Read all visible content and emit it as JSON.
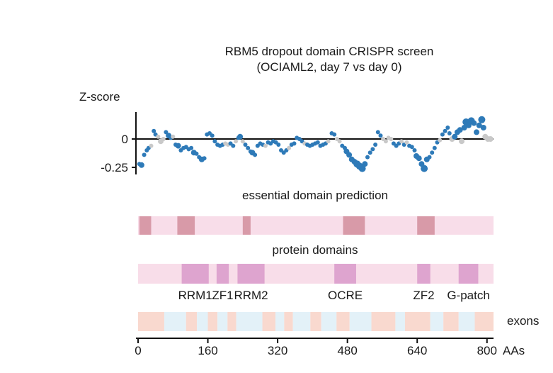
{
  "title_line1": "RBM5 dropout domain CRISPR screen",
  "title_line2": "(OCIAML2, day 7 vs day 0)",
  "colors": {
    "dot_active": "#2e7ab8",
    "dot_neutral": "#c9c9c9",
    "essential_bg": "#f8dde9",
    "essential_region": "#d89aa8",
    "domain_bg": "#f8dde9",
    "domain_region": "#dea4cf",
    "exon_a": "#f9d9cf",
    "exon_b": "#e3f1f8"
  },
  "chart_data": [
    {
      "type": "scatter",
      "title": "RBM5 dropout domain CRISPR screen (OCIAML2, day 7 vs day 0)",
      "ylabel": "Z-score",
      "xlabel": "AAs",
      "xlim": [
        0,
        815
      ],
      "ylim": [
        -0.28,
        0.2
      ],
      "yticks": [
        {
          "value": 0,
          "label": "0"
        },
        {
          "value": -0.25,
          "label": "-0.25"
        }
      ],
      "points": [
        {
          "x": 3,
          "y": -0.22,
          "s": 3,
          "c": "a"
        },
        {
          "x": 8,
          "y": -0.23,
          "s": 4,
          "c": "a"
        },
        {
          "x": 14,
          "y": -0.14,
          "s": 3,
          "c": "a"
        },
        {
          "x": 20,
          "y": -0.1,
          "s": 3,
          "c": "a"
        },
        {
          "x": 24,
          "y": -0.08,
          "s": 3,
          "c": "a"
        },
        {
          "x": 30,
          "y": -0.06,
          "s": 3,
          "c": "n"
        },
        {
          "x": 36,
          "y": 0.07,
          "s": 3,
          "c": "a"
        },
        {
          "x": 40,
          "y": 0.04,
          "s": 3,
          "c": "a"
        },
        {
          "x": 46,
          "y": 0.02,
          "s": 3,
          "c": "n"
        },
        {
          "x": 52,
          "y": -0.02,
          "s": 4,
          "c": "n"
        },
        {
          "x": 58,
          "y": 0.0,
          "s": 3,
          "c": "n"
        },
        {
          "x": 64,
          "y": 0.06,
          "s": 3,
          "c": "a"
        },
        {
          "x": 70,
          "y": 0.03,
          "s": 4,
          "c": "a"
        },
        {
          "x": 75,
          "y": 0.01,
          "s": 3,
          "c": "a"
        },
        {
          "x": 80,
          "y": 0.02,
          "s": 3,
          "c": "n"
        },
        {
          "x": 86,
          "y": -0.05,
          "s": 3,
          "c": "a"
        },
        {
          "x": 92,
          "y": -0.06,
          "s": 4,
          "c": "a"
        },
        {
          "x": 98,
          "y": -0.1,
          "s": 3,
          "c": "a"
        },
        {
          "x": 104,
          "y": -0.08,
          "s": 3,
          "c": "a"
        },
        {
          "x": 110,
          "y": -0.07,
          "s": 3,
          "c": "a"
        },
        {
          "x": 116,
          "y": -0.09,
          "s": 3,
          "c": "a"
        },
        {
          "x": 122,
          "y": -0.08,
          "s": 3,
          "c": "a"
        },
        {
          "x": 128,
          "y": -0.12,
          "s": 4,
          "c": "a"
        },
        {
          "x": 134,
          "y": -0.13,
          "s": 3,
          "c": "a"
        },
        {
          "x": 140,
          "y": -0.16,
          "s": 3,
          "c": "a"
        },
        {
          "x": 146,
          "y": -0.18,
          "s": 4,
          "c": "a"
        },
        {
          "x": 152,
          "y": -0.17,
          "s": 3,
          "c": "a"
        },
        {
          "x": 158,
          "y": 0.04,
          "s": 3,
          "c": "a"
        },
        {
          "x": 164,
          "y": 0.05,
          "s": 3,
          "c": "a"
        },
        {
          "x": 170,
          "y": 0.03,
          "s": 3,
          "c": "a"
        },
        {
          "x": 176,
          "y": -0.02,
          "s": 3,
          "c": "a"
        },
        {
          "x": 182,
          "y": -0.05,
          "s": 3,
          "c": "a"
        },
        {
          "x": 188,
          "y": -0.06,
          "s": 3,
          "c": "a"
        },
        {
          "x": 194,
          "y": -0.05,
          "s": 3,
          "c": "a"
        },
        {
          "x": 200,
          "y": -0.04,
          "s": 3,
          "c": "n"
        },
        {
          "x": 206,
          "y": -0.05,
          "s": 3,
          "c": "n"
        },
        {
          "x": 212,
          "y": -0.04,
          "s": 3,
          "c": "a"
        },
        {
          "x": 218,
          "y": -0.06,
          "s": 3,
          "c": "a"
        },
        {
          "x": 224,
          "y": -0.02,
          "s": 3,
          "c": "n"
        },
        {
          "x": 230,
          "y": 0.01,
          "s": 3,
          "c": "a"
        },
        {
          "x": 234,
          "y": 0.02,
          "s": 4,
          "c": "a"
        },
        {
          "x": 240,
          "y": -0.02,
          "s": 3,
          "c": "n"
        },
        {
          "x": 246,
          "y": -0.05,
          "s": 3,
          "c": "a"
        },
        {
          "x": 252,
          "y": -0.08,
          "s": 3,
          "c": "a"
        },
        {
          "x": 258,
          "y": -0.11,
          "s": 3,
          "c": "a"
        },
        {
          "x": 262,
          "y": -0.12,
          "s": 4,
          "c": "a"
        },
        {
          "x": 268,
          "y": -0.14,
          "s": 3,
          "c": "a"
        },
        {
          "x": 274,
          "y": -0.06,
          "s": 3,
          "c": "a"
        },
        {
          "x": 280,
          "y": -0.04,
          "s": 3,
          "c": "a"
        },
        {
          "x": 286,
          "y": -0.05,
          "s": 3,
          "c": "a"
        },
        {
          "x": 292,
          "y": -0.06,
          "s": 3,
          "c": "n"
        },
        {
          "x": 298,
          "y": -0.03,
          "s": 3,
          "c": "a"
        },
        {
          "x": 304,
          "y": -0.04,
          "s": 3,
          "c": "a"
        },
        {
          "x": 310,
          "y": -0.02,
          "s": 3,
          "c": "a"
        },
        {
          "x": 316,
          "y": -0.03,
          "s": 3,
          "c": "a"
        },
        {
          "x": 322,
          "y": -0.05,
          "s": 3,
          "c": "a"
        },
        {
          "x": 328,
          "y": -0.1,
          "s": 3,
          "c": "a"
        },
        {
          "x": 334,
          "y": -0.12,
          "s": 3,
          "c": "a"
        },
        {
          "x": 340,
          "y": -0.1,
          "s": 3,
          "c": "a"
        },
        {
          "x": 346,
          "y": -0.08,
          "s": 3,
          "c": "n"
        },
        {
          "x": 352,
          "y": -0.05,
          "s": 3,
          "c": "a"
        },
        {
          "x": 358,
          "y": -0.04,
          "s": 3,
          "c": "a"
        },
        {
          "x": 364,
          "y": 0.01,
          "s": 3,
          "c": "a"
        },
        {
          "x": 370,
          "y": 0.0,
          "s": 3,
          "c": "a"
        },
        {
          "x": 376,
          "y": -0.02,
          "s": 3,
          "c": "a"
        },
        {
          "x": 382,
          "y": -0.04,
          "s": 3,
          "c": "n"
        },
        {
          "x": 388,
          "y": -0.05,
          "s": 3,
          "c": "a"
        },
        {
          "x": 394,
          "y": -0.06,
          "s": 3,
          "c": "a"
        },
        {
          "x": 400,
          "y": -0.05,
          "s": 3,
          "c": "a"
        },
        {
          "x": 406,
          "y": -0.04,
          "s": 3,
          "c": "a"
        },
        {
          "x": 412,
          "y": -0.03,
          "s": 3,
          "c": "a"
        },
        {
          "x": 418,
          "y": -0.06,
          "s": 3,
          "c": "a"
        },
        {
          "x": 424,
          "y": -0.05,
          "s": 3,
          "c": "a"
        },
        {
          "x": 430,
          "y": -0.04,
          "s": 3,
          "c": "a"
        },
        {
          "x": 436,
          "y": -0.02,
          "s": 3,
          "c": "n"
        },
        {
          "x": 444,
          "y": 0.05,
          "s": 3,
          "c": "a"
        },
        {
          "x": 450,
          "y": 0.04,
          "s": 3,
          "c": "a"
        },
        {
          "x": 456,
          "y": 0.0,
          "s": 3,
          "c": "n"
        },
        {
          "x": 462,
          "y": -0.02,
          "s": 3,
          "c": "n"
        },
        {
          "x": 468,
          "y": -0.06,
          "s": 3,
          "c": "a"
        },
        {
          "x": 474,
          "y": -0.08,
          "s": 3,
          "c": "a"
        },
        {
          "x": 478,
          "y": -0.11,
          "s": 4,
          "c": "a"
        },
        {
          "x": 484,
          "y": -0.14,
          "s": 4,
          "c": "a"
        },
        {
          "x": 490,
          "y": -0.18,
          "s": 4,
          "c": "a"
        },
        {
          "x": 496,
          "y": -0.2,
          "s": 4,
          "c": "a"
        },
        {
          "x": 502,
          "y": -0.22,
          "s": 5,
          "c": "a"
        },
        {
          "x": 508,
          "y": -0.24,
          "s": 5,
          "c": "a"
        },
        {
          "x": 514,
          "y": -0.26,
          "s": 5,
          "c": "a"
        },
        {
          "x": 520,
          "y": -0.22,
          "s": 4,
          "c": "a"
        },
        {
          "x": 526,
          "y": -0.16,
          "s": 3,
          "c": "a"
        },
        {
          "x": 532,
          "y": -0.12,
          "s": 3,
          "c": "a"
        },
        {
          "x": 538,
          "y": -0.09,
          "s": 3,
          "c": "a"
        },
        {
          "x": 544,
          "y": -0.05,
          "s": 3,
          "c": "a"
        },
        {
          "x": 550,
          "y": 0.06,
          "s": 3,
          "c": "a"
        },
        {
          "x": 556,
          "y": 0.03,
          "s": 3,
          "c": "a"
        },
        {
          "x": 562,
          "y": 0.0,
          "s": 3,
          "c": "n"
        },
        {
          "x": 568,
          "y": -0.02,
          "s": 3,
          "c": "n"
        },
        {
          "x": 574,
          "y": 0.01,
          "s": 3,
          "c": "n"
        },
        {
          "x": 580,
          "y": 0.0,
          "s": 3,
          "c": "n"
        },
        {
          "x": 586,
          "y": -0.04,
          "s": 3,
          "c": "a"
        },
        {
          "x": 592,
          "y": -0.06,
          "s": 3,
          "c": "a"
        },
        {
          "x": 598,
          "y": -0.04,
          "s": 3,
          "c": "a"
        },
        {
          "x": 604,
          "y": -0.02,
          "s": 3,
          "c": "n"
        },
        {
          "x": 610,
          "y": -0.05,
          "s": 3,
          "c": "a"
        },
        {
          "x": 616,
          "y": -0.03,
          "s": 3,
          "c": "n"
        },
        {
          "x": 622,
          "y": -0.06,
          "s": 3,
          "c": "a"
        },
        {
          "x": 628,
          "y": -0.07,
          "s": 3,
          "c": "a"
        },
        {
          "x": 634,
          "y": -0.1,
          "s": 3,
          "c": "a"
        },
        {
          "x": 638,
          "y": -0.15,
          "s": 4,
          "c": "a"
        },
        {
          "x": 644,
          "y": -0.17,
          "s": 4,
          "c": "a"
        },
        {
          "x": 650,
          "y": -0.22,
          "s": 4,
          "c": "a"
        },
        {
          "x": 656,
          "y": -0.26,
          "s": 5,
          "c": "a"
        },
        {
          "x": 662,
          "y": -0.18,
          "s": 4,
          "c": "a"
        },
        {
          "x": 668,
          "y": -0.16,
          "s": 3,
          "c": "a"
        },
        {
          "x": 674,
          "y": -0.12,
          "s": 3,
          "c": "a"
        },
        {
          "x": 680,
          "y": -0.08,
          "s": 3,
          "c": "a"
        },
        {
          "x": 686,
          "y": -0.03,
          "s": 3,
          "c": "a"
        },
        {
          "x": 692,
          "y": -0.01,
          "s": 3,
          "c": "n"
        },
        {
          "x": 698,
          "y": 0.04,
          "s": 3,
          "c": "a"
        },
        {
          "x": 704,
          "y": 0.07,
          "s": 3,
          "c": "a"
        },
        {
          "x": 710,
          "y": 0.1,
          "s": 3,
          "c": "a"
        },
        {
          "x": 714,
          "y": 0.05,
          "s": 3,
          "c": "a"
        },
        {
          "x": 720,
          "y": 0.0,
          "s": 4,
          "c": "n"
        },
        {
          "x": 726,
          "y": 0.02,
          "s": 4,
          "c": "a"
        },
        {
          "x": 732,
          "y": 0.06,
          "s": 4,
          "c": "a"
        },
        {
          "x": 738,
          "y": 0.08,
          "s": 4,
          "c": "a"
        },
        {
          "x": 742,
          "y": -0.02,
          "s": 4,
          "c": "n"
        },
        {
          "x": 748,
          "y": 0.1,
          "s": 4,
          "c": "a"
        },
        {
          "x": 752,
          "y": 0.15,
          "s": 5,
          "c": "a"
        },
        {
          "x": 758,
          "y": 0.12,
          "s": 4,
          "c": "a"
        },
        {
          "x": 764,
          "y": 0.16,
          "s": 5,
          "c": "a"
        },
        {
          "x": 770,
          "y": 0.14,
          "s": 4,
          "c": "a"
        },
        {
          "x": 776,
          "y": 0.06,
          "s": 4,
          "c": "a"
        },
        {
          "x": 782,
          "y": 0.12,
          "s": 4,
          "c": "a"
        },
        {
          "x": 788,
          "y": 0.17,
          "s": 5,
          "c": "a"
        },
        {
          "x": 792,
          "y": 0.1,
          "s": 4,
          "c": "a"
        },
        {
          "x": 796,
          "y": 0.02,
          "s": 4,
          "c": "n"
        },
        {
          "x": 802,
          "y": 0.0,
          "s": 4,
          "c": "n"
        },
        {
          "x": 808,
          "y": 0.0,
          "s": 4,
          "c": "n"
        }
      ]
    },
    {
      "type": "bar",
      "title": "essential domain prediction",
      "regions": [
        {
          "start": 3,
          "end": 30
        },
        {
          "start": 90,
          "end": 130
        },
        {
          "start": 240,
          "end": 258
        },
        {
          "start": 470,
          "end": 520
        },
        {
          "start": 640,
          "end": 680
        }
      ]
    },
    {
      "type": "bar",
      "title": "protein domains",
      "regions": [
        {
          "start": 100,
          "end": 162,
          "label": "RRM1"
        },
        {
          "start": 180,
          "end": 208,
          "label": "ZF1"
        },
        {
          "start": 228,
          "end": 290,
          "label": "RRM2"
        },
        {
          "start": 450,
          "end": 500,
          "label": "OCRE"
        },
        {
          "start": 640,
          "end": 670,
          "label": "ZF2"
        },
        {
          "start": 735,
          "end": 780,
          "label": "G-patch"
        }
      ]
    },
    {
      "type": "bar",
      "title": "exons",
      "segments": [
        {
          "start": 0,
          "end": 60,
          "c": "a"
        },
        {
          "start": 60,
          "end": 110,
          "c": "b"
        },
        {
          "start": 110,
          "end": 135,
          "c": "a"
        },
        {
          "start": 135,
          "end": 160,
          "c": "b"
        },
        {
          "start": 160,
          "end": 182,
          "c": "a"
        },
        {
          "start": 182,
          "end": 205,
          "c": "b"
        },
        {
          "start": 205,
          "end": 225,
          "c": "a"
        },
        {
          "start": 225,
          "end": 285,
          "c": "b"
        },
        {
          "start": 285,
          "end": 315,
          "c": "a"
        },
        {
          "start": 315,
          "end": 335,
          "c": "b"
        },
        {
          "start": 335,
          "end": 355,
          "c": "a"
        },
        {
          "start": 355,
          "end": 395,
          "c": "b"
        },
        {
          "start": 395,
          "end": 420,
          "c": "a"
        },
        {
          "start": 420,
          "end": 455,
          "c": "b"
        },
        {
          "start": 455,
          "end": 485,
          "c": "a"
        },
        {
          "start": 485,
          "end": 535,
          "c": "b"
        },
        {
          "start": 535,
          "end": 590,
          "c": "a"
        },
        {
          "start": 590,
          "end": 612,
          "c": "b"
        },
        {
          "start": 612,
          "end": 670,
          "c": "a"
        },
        {
          "start": 670,
          "end": 700,
          "c": "b"
        },
        {
          "start": 700,
          "end": 735,
          "c": "a"
        },
        {
          "start": 735,
          "end": 772,
          "c": "b"
        },
        {
          "start": 772,
          "end": 815,
          "c": "a"
        }
      ]
    },
    {
      "type": "axis",
      "xlabel": "AAs",
      "xlim": [
        0,
        815
      ],
      "xticks": [
        0,
        160,
        320,
        480,
        640,
        800
      ]
    }
  ],
  "labels": {
    "z_score": "Z-score",
    "essential_title": "essential domain prediction",
    "domains_title": "protein domains",
    "exons": "exons",
    "aas": "AAs"
  }
}
